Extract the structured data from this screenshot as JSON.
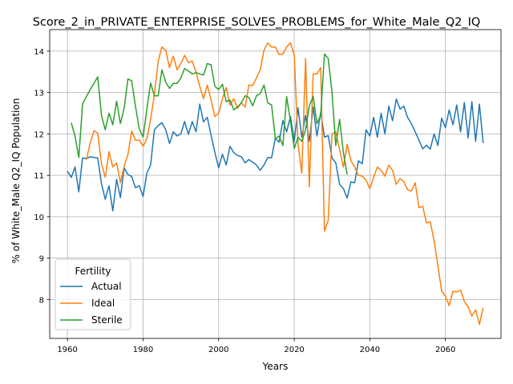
{
  "chart_data": {
    "type": "line",
    "title": "Score_2_in_PRIVATE_ENTERPRISE_SOLVES_PROBLEMS_for_White_Male_Q2_IQ",
    "xlabel": "Years",
    "ylabel": "% of White_Male Q2_IQ Population",
    "xlim": [
      1955.3,
      2074.7
    ],
    "ylim": [
      7.06,
      14.52
    ],
    "xticks": [
      1960,
      1980,
      2000,
      2020,
      2040,
      2060
    ],
    "xtick_labels": [
      "1960",
      "1980",
      "2000",
      "2020",
      "2040",
      "2060"
    ],
    "yticks": [
      8,
      9,
      10,
      11,
      12,
      13,
      14
    ],
    "ytick_labels": [
      "8",
      "9",
      "10",
      "11",
      "12",
      "13",
      "14"
    ],
    "grid": true,
    "legend": {
      "title": "Fertility",
      "placement": "lower-left"
    },
    "series": [
      {
        "name": "Actual",
        "color": "#1f77b4",
        "x": [
          1960,
          1961,
          1962,
          1963,
          1964,
          1965,
          1966,
          1967,
          1968,
          1969,
          1970,
          1971,
          1972,
          1973,
          1974,
          1975,
          1976,
          1977,
          1978,
          1979,
          1980,
          1981,
          1982,
          1983,
          1984,
          1985,
          1986,
          1987,
          1988,
          1989,
          1990,
          1991,
          1992,
          1993,
          1994,
          1995,
          1996,
          1997,
          1998,
          1999,
          2000,
          2001,
          2002,
          2003,
          2004,
          2005,
          2006,
          2007,
          2008,
          2009,
          2010,
          2011,
          2012,
          2013,
          2014,
          2015,
          2016,
          2017,
          2018,
          2019,
          2020,
          2021,
          2022,
          2023,
          2024,
          2025,
          2026,
          2027,
          2028,
          2029,
          2030,
          2031,
          2032,
          2033,
          2034,
          2035,
          2036,
          2037,
          2038,
          2039,
          2040,
          2041,
          2042,
          2043,
          2044,
          2045,
          2046,
          2047,
          2048,
          2049,
          2050,
          2051,
          2052,
          2053,
          2054,
          2055,
          2056,
          2057,
          2058,
          2059,
          2060,
          2061,
          2062,
          2063,
          2064,
          2065,
          2066,
          2067,
          2068,
          2069,
          2070
        ],
        "y": [
          11.1,
          10.95,
          11.2,
          10.6,
          11.42,
          11.4,
          11.45,
          11.43,
          11.42,
          10.8,
          10.42,
          10.75,
          10.14,
          10.9,
          10.46,
          11.18,
          11.02,
          10.97,
          10.7,
          10.75,
          10.49,
          11.05,
          11.25,
          12.1,
          12.2,
          12.27,
          12.1,
          11.77,
          12.05,
          11.95,
          12.0,
          12.3,
          11.99,
          12.3,
          12.05,
          12.72,
          12.29,
          12.4,
          11.97,
          11.55,
          11.18,
          11.51,
          11.25,
          11.7,
          11.55,
          11.48,
          11.45,
          11.3,
          11.38,
          11.32,
          11.25,
          11.12,
          11.25,
          11.43,
          11.42,
          11.9,
          11.8,
          12.32,
          12.05,
          12.42,
          11.82,
          12.63,
          11.92,
          12.45,
          11.82,
          12.65,
          11.95,
          12.52,
          11.92,
          11.96,
          11.42,
          11.3,
          10.78,
          10.68,
          10.45,
          10.84,
          10.82,
          11.35,
          11.28,
          12.1,
          11.95,
          12.4,
          11.92,
          12.5,
          12.0,
          12.67,
          12.32,
          12.84,
          12.6,
          12.67,
          12.4,
          12.25,
          12.05,
          11.85,
          11.64,
          11.73,
          11.63,
          12.0,
          11.72,
          12.38,
          12.15,
          12.58,
          12.22,
          12.7,
          12.05,
          12.76,
          11.9,
          12.78,
          11.82,
          12.72,
          11.78
        ]
      },
      {
        "name": "Ideal",
        "color": "#ff7f0e",
        "x": [
          1960,
          1961,
          1962,
          1963,
          1964,
          1965,
          1966,
          1967,
          1968,
          1969,
          1970,
          1971,
          1972,
          1973,
          1974,
          1975,
          1976,
          1977,
          1978,
          1979,
          1980,
          1981,
          1982,
          1983,
          1984,
          1985,
          1986,
          1987,
          1988,
          1989,
          1990,
          1991,
          1992,
          1993,
          1994,
          1995,
          1996,
          1997,
          1998,
          1999,
          2000,
          2001,
          2002,
          2003,
          2004,
          2005,
          2006,
          2007,
          2008,
          2009,
          2010,
          2011,
          2012,
          2013,
          2014,
          2015,
          2016,
          2017,
          2018,
          2019,
          2020,
          2021,
          2022,
          2023,
          2024,
          2025,
          2026,
          2027,
          2028,
          2029,
          2030,
          2031,
          2032,
          2033,
          2034,
          2035,
          2036,
          2037,
          2038,
          2039,
          2040,
          2041,
          2042,
          2043,
          2044,
          2045,
          2046,
          2047,
          2048,
          2049,
          2050,
          2051,
          2052,
          2053,
          2054,
          2055,
          2056,
          2057,
          2058,
          2059,
          2060,
          2061,
          2062,
          2063,
          2064,
          2065,
          2066,
          2067,
          2068,
          2069,
          2070
        ],
        "y": [
          null,
          null,
          null,
          null,
          null,
          11.38,
          11.78,
          12.08,
          12.02,
          11.28,
          10.95,
          11.57,
          11.2,
          11.3,
          10.82,
          11.22,
          11.5,
          12.07,
          11.85,
          11.85,
          11.7,
          11.88,
          12.35,
          12.95,
          13.75,
          14.1,
          14.02,
          13.6,
          13.88,
          13.55,
          13.7,
          13.9,
          13.72,
          13.76,
          13.5,
          13.15,
          12.85,
          13.18,
          12.82,
          12.42,
          12.5,
          12.85,
          13.12,
          12.7,
          12.85,
          12.62,
          12.75,
          12.65,
          13.18,
          13.17,
          13.35,
          13.55,
          14.02,
          14.2,
          14.1,
          14.1,
          13.92,
          13.93,
          14.1,
          14.2,
          13.9,
          11.75,
          11.05,
          13.82,
          10.72,
          13.45,
          13.45,
          13.6,
          9.65,
          9.92,
          12.0,
          12.05,
          11.62,
          11.2,
          11.75,
          11.35,
          11.2,
          11.0,
          10.98,
          10.88,
          10.68,
          10.95,
          11.2,
          11.12,
          10.98,
          11.25,
          11.12,
          10.78,
          10.92,
          10.85,
          10.65,
          10.62,
          10.82,
          10.22,
          10.25,
          9.85,
          9.88,
          9.42,
          8.82,
          8.2,
          8.08,
          7.85,
          8.2,
          8.18,
          8.23,
          7.95,
          7.82,
          7.6,
          7.75,
          7.4,
          7.8
        ]
      },
      {
        "name": "Sterile",
        "color": "#2ca02c",
        "x": [
          1960,
          1961,
          1962,
          1963,
          1964,
          1965,
          1966,
          1967,
          1968,
          1969,
          1970,
          1971,
          1972,
          1973,
          1974,
          1975,
          1976,
          1977,
          1978,
          1979,
          1980,
          1981,
          1982,
          1983,
          1984,
          1985,
          1986,
          1987,
          1988,
          1989,
          1990,
          1991,
          1992,
          1993,
          1994,
          1995,
          1996,
          1997,
          1998,
          1999,
          2000,
          2001,
          2002,
          2003,
          2004,
          2005,
          2006,
          2007,
          2008,
          2009,
          2010,
          2011,
          2012,
          2013,
          2014,
          2015,
          2016,
          2017,
          2018,
          2019,
          2020,
          2021,
          2022,
          2023,
          2024,
          2025,
          2026,
          2027,
          2028,
          2029,
          2030,
          2031,
          2032,
          2033,
          2034
        ],
        "y": [
          null,
          12.27,
          11.95,
          11.43,
          12.72,
          12.9,
          13.07,
          13.22,
          13.38,
          12.45,
          12.1,
          12.5,
          12.22,
          12.79,
          12.25,
          12.62,
          13.33,
          13.28,
          12.67,
          12.12,
          11.92,
          12.6,
          13.23,
          12.92,
          12.92,
          13.55,
          13.25,
          13.1,
          13.22,
          13.22,
          13.35,
          13.58,
          13.52,
          13.45,
          13.48,
          13.45,
          13.42,
          13.7,
          13.67,
          13.15,
          13.07,
          13.2,
          12.78,
          12.82,
          12.58,
          12.65,
          12.75,
          12.92,
          12.88,
          12.68,
          12.92,
          12.98,
          13.18,
          12.75,
          12.7,
          11.88,
          11.95,
          11.72,
          12.9,
          12.3,
          11.65,
          11.92,
          11.82,
          12.1,
          12.68,
          12.9,
          12.25,
          12.45,
          13.93,
          13.82,
          13.0,
          11.72,
          12.35,
          11.55,
          11.02
        ]
      }
    ]
  }
}
